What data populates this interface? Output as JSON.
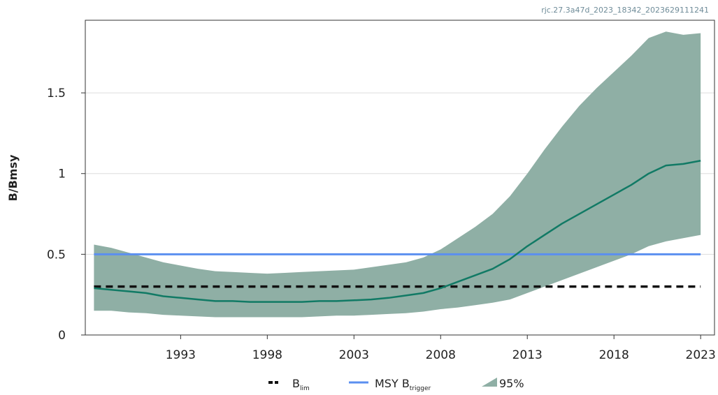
{
  "chart_data": {
    "type": "line",
    "watermark": "rjc.27.3a47d_2023_18342_2023629111241",
    "ylabel": "B/Bmsy",
    "xlabel": "",
    "xlim": [
      1987.5,
      2023.8
    ],
    "ylim": [
      0,
      1.95
    ],
    "x_ticks": [
      1993,
      1998,
      2003,
      2008,
      2013,
      2018,
      2023
    ],
    "x_tick_labels": [
      "1993",
      "1998",
      "2003",
      "2008",
      "2013",
      "2018",
      "2023"
    ],
    "y_ticks": [
      0,
      0.5,
      1,
      1.5
    ],
    "y_tick_labels": [
      "0",
      "0.5",
      "1",
      "1.5"
    ],
    "grid": "horizontal",
    "legend_placement": "bottom",
    "colors": {
      "ci_band": "#8fafa5",
      "main_line": "#117a65",
      "msy_btrigger": "#5b8ff0",
      "blim": "#111111",
      "grid": "#dddddd",
      "axes": "#333333"
    },
    "series": [
      {
        "name": "B/Bmsy",
        "x": [
          1988,
          1989,
          1990,
          1991,
          1992,
          1993,
          1994,
          1995,
          1996,
          1997,
          1998,
          1999,
          2000,
          2001,
          2002,
          2003,
          2004,
          2005,
          2006,
          2007,
          2008,
          2009,
          2010,
          2011,
          2012,
          2013,
          2014,
          2015,
          2016,
          2017,
          2018,
          2019,
          2020,
          2021,
          2022,
          2023
        ],
        "y": [
          0.29,
          0.28,
          0.27,
          0.26,
          0.24,
          0.23,
          0.22,
          0.21,
          0.21,
          0.205,
          0.205,
          0.205,
          0.205,
          0.21,
          0.21,
          0.215,
          0.22,
          0.23,
          0.245,
          0.26,
          0.29,
          0.33,
          0.37,
          0.41,
          0.47,
          0.55,
          0.62,
          0.69,
          0.75,
          0.81,
          0.87,
          0.93,
          1.0,
          1.05,
          1.06,
          1.08
        ]
      },
      {
        "name": "95%",
        "type": "band",
        "x": [
          1988,
          1989,
          1990,
          1991,
          1992,
          1993,
          1994,
          1995,
          1996,
          1997,
          1998,
          1999,
          2000,
          2001,
          2002,
          2003,
          2004,
          2005,
          2006,
          2007,
          2008,
          2009,
          2010,
          2011,
          2012,
          2013,
          2014,
          2015,
          2016,
          2017,
          2018,
          2019,
          2020,
          2021,
          2022,
          2023
        ],
        "upper": [
          0.56,
          0.54,
          0.51,
          0.48,
          0.45,
          0.43,
          0.41,
          0.395,
          0.39,
          0.385,
          0.38,
          0.385,
          0.39,
          0.395,
          0.4,
          0.405,
          0.42,
          0.435,
          0.45,
          0.48,
          0.53,
          0.6,
          0.67,
          0.75,
          0.86,
          1.0,
          1.15,
          1.29,
          1.42,
          1.53,
          1.63,
          1.73,
          1.84,
          1.88,
          1.86,
          1.87
        ],
        "lower": [
          0.15,
          0.15,
          0.14,
          0.135,
          0.125,
          0.12,
          0.115,
          0.11,
          0.11,
          0.11,
          0.11,
          0.11,
          0.11,
          0.115,
          0.12,
          0.12,
          0.125,
          0.13,
          0.135,
          0.145,
          0.16,
          0.17,
          0.185,
          0.2,
          0.22,
          0.26,
          0.3,
          0.34,
          0.38,
          0.42,
          0.46,
          0.5,
          0.55,
          0.58,
          0.6,
          0.62
        ]
      },
      {
        "name": "MSY Btrigger",
        "type": "hline",
        "y": 0.5
      },
      {
        "name": "Blim",
        "type": "hline",
        "y": 0.3
      }
    ],
    "legend": [
      {
        "key": "blim",
        "label": "B",
        "sub": "lim"
      },
      {
        "key": "msy",
        "label": "MSY B",
        "sub": "trigger"
      },
      {
        "key": "band",
        "label": "95%",
        "sub": ""
      }
    ]
  }
}
